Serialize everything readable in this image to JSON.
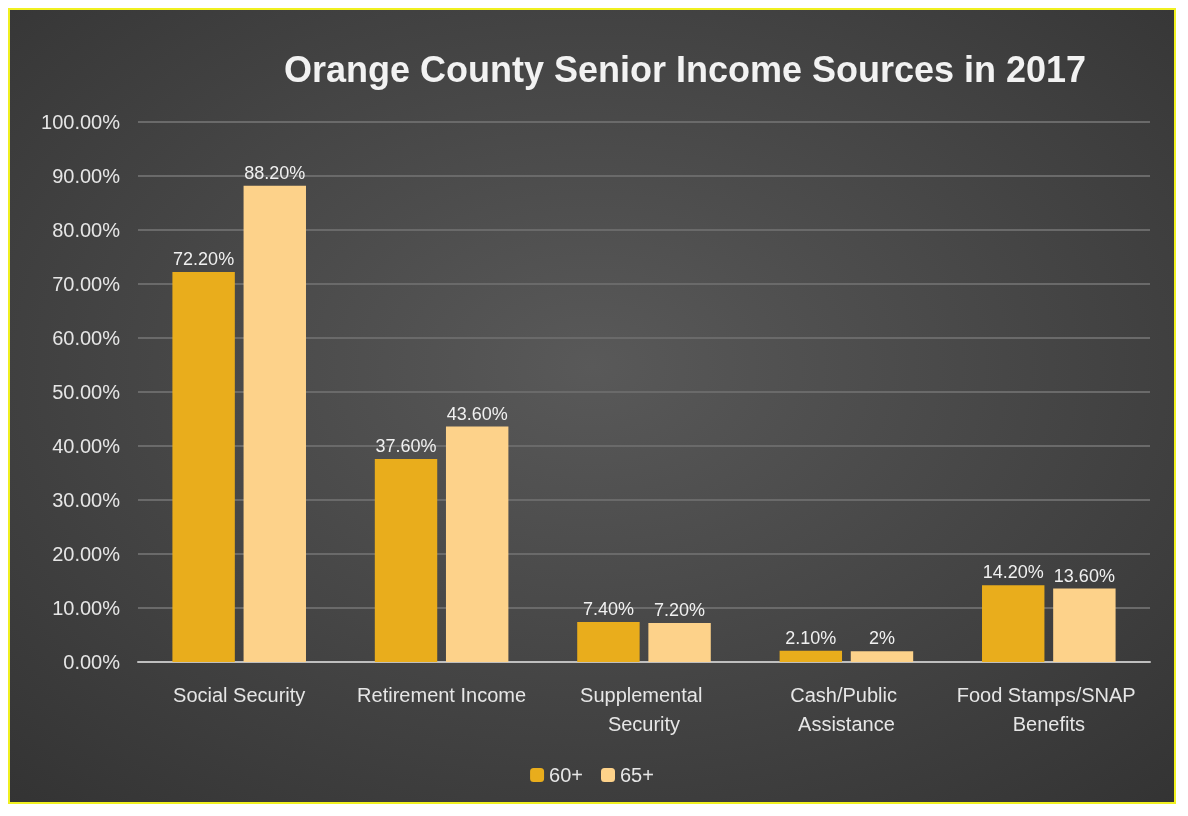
{
  "chart_data": {
    "type": "bar",
    "title": "Orange County Senior Income Sources in 2017",
    "categories": [
      "Social Security",
      "Retirement Income",
      "Supplemental Security",
      "Cash/Public Assistance",
      "Food Stamps/SNAP Benefits"
    ],
    "series": [
      {
        "name": "60+",
        "color": "#e9ad1c",
        "values": [
          72.2,
          37.6,
          7.4,
          2.1,
          14.2
        ],
        "value_labels": [
          "72.20%",
          "37.60%",
          "7.40%",
          "2.10%",
          "14.20%"
        ]
      },
      {
        "name": "65+",
        "color": "#fdd28a",
        "values": [
          88.2,
          43.6,
          7.2,
          2,
          13.6
        ],
        "value_labels": [
          "88.20%",
          "43.60%",
          "7.20%",
          "2%",
          "13.60%"
        ]
      }
    ],
    "ylim": [
      0,
      100
    ],
    "yticks": [
      {
        "value": 0,
        "label": "0.00%"
      },
      {
        "value": 10,
        "label": "10.00%"
      },
      {
        "value": 20,
        "label": "20.00%"
      },
      {
        "value": 30,
        "label": "30.00%"
      },
      {
        "value": 40,
        "label": "40.00%"
      },
      {
        "value": 50,
        "label": "50.00%"
      },
      {
        "value": 60,
        "label": "60.00%"
      },
      {
        "value": 70,
        "label": "70.00%"
      },
      {
        "value": 80,
        "label": "80.00%"
      },
      {
        "value": 90,
        "label": "90.00%"
      },
      {
        "value": 100,
        "label": "100.00%"
      }
    ],
    "grid": "y",
    "legend": "bottom"
  }
}
